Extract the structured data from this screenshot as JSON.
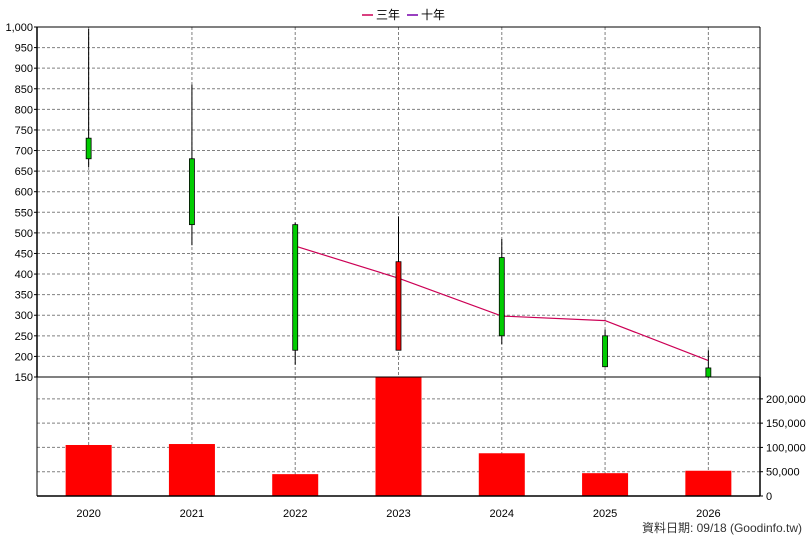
{
  "chart_data": {
    "type": "candlestick",
    "x": [
      "2020",
      "2021",
      "2022",
      "2023",
      "2024",
      "2025",
      "2026"
    ],
    "price": {
      "ylim": [
        150,
        1000
      ],
      "ticks": [
        150,
        200,
        250,
        300,
        350,
        400,
        450,
        500,
        550,
        600,
        650,
        700,
        750,
        800,
        850,
        900,
        950,
        1000
      ],
      "tick_labels": [
        "150",
        "200",
        "250",
        "300",
        "350",
        "400",
        "450",
        "500",
        "550",
        "600",
        "650",
        "700",
        "750",
        "800",
        "850",
        "900",
        "950",
        "1,000"
      ],
      "candles": [
        {
          "x": "2020",
          "open": 680,
          "high": 995,
          "low": 660,
          "close": 730
        },
        {
          "x": "2021",
          "open": 520,
          "high": 860,
          "low": 470,
          "close": 680
        },
        {
          "x": "2022",
          "open": 215,
          "high": 525,
          "low": 180,
          "close": 520
        },
        {
          "x": "2023",
          "open": 430,
          "high": 540,
          "low": 215,
          "close": 215
        },
        {
          "x": "2024",
          "open": 250,
          "high": 485,
          "low": 230,
          "close": 440
        },
        {
          "x": "2025",
          "open": 175,
          "high": 265,
          "low": 175,
          "close": 250
        },
        {
          "x": "2026",
          "open": 150,
          "high": 215,
          "low": 148,
          "close": 172
        }
      ],
      "series": [
        {
          "name": "三年",
          "color": "#cc0055",
          "points": [
            [
              "2022",
              468
            ],
            [
              "2023",
              390
            ],
            [
              "2024",
              298
            ],
            [
              "2025",
              287
            ],
            [
              "2026",
              190
            ]
          ]
        },
        {
          "name": "十年",
          "color": "#7700aa",
          "points": []
        }
      ]
    },
    "volume": {
      "ylim": [
        0,
        245000
      ],
      "ticks": [
        0,
        50000,
        100000,
        150000,
        200000
      ],
      "tick_labels": [
        "0",
        "50,000",
        "100,000",
        "150,000",
        "200,000"
      ],
      "values": [
        105000,
        107000,
        45000,
        245000,
        88000,
        47000,
        52000
      ]
    },
    "legend_position": "top-center",
    "grid": true
  },
  "colors": {
    "up": "#00cc00",
    "down": "#ff0000",
    "volume": "#ff0000",
    "grid": "#808080"
  },
  "footer_text": "資料日期: 09/18  (Goodinfo.tw)"
}
